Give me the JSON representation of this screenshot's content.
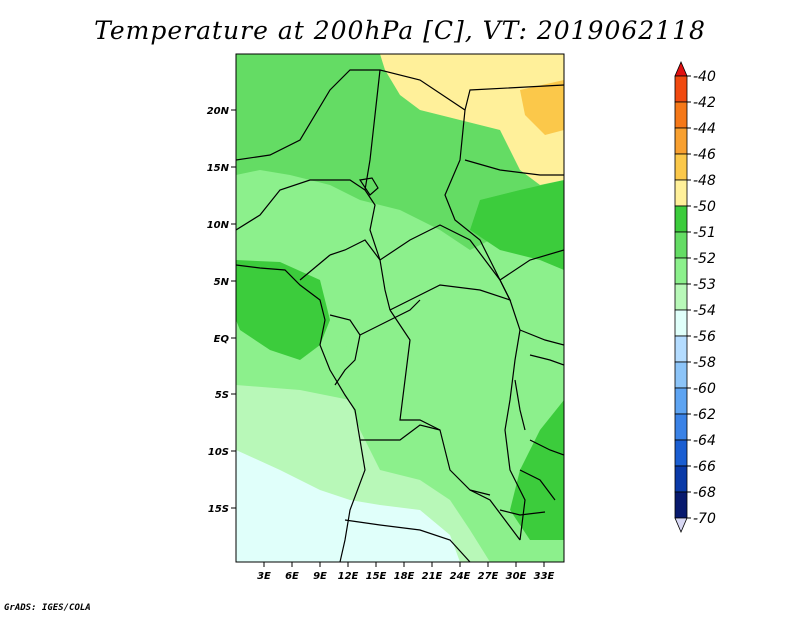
{
  "title": "Temperature at 200hPa [C], VT: 2019062118",
  "credit": "GrADS: IGES/COLA",
  "map": {
    "lat_labels": [
      "20N",
      "15N",
      "10N",
      "5N",
      "EQ",
      "5S",
      "10S",
      "15S"
    ],
    "lon_labels": [
      "3E",
      "6E",
      "9E",
      "12E",
      "15E",
      "18E",
      "21E",
      "24E",
      "27E",
      "30E",
      "33E"
    ],
    "region": "Central Africa"
  },
  "colorbar": {
    "labels": [
      "-40",
      "-42",
      "-44",
      "-46",
      "-48",
      "-50",
      "-51",
      "-52",
      "-53",
      "-54",
      "-56",
      "-58",
      "-60",
      "-62",
      "-64",
      "-66",
      "-68",
      "-70"
    ],
    "colors": [
      "#e01010",
      "#f04a10",
      "#f57818",
      "#f8a030",
      "#fbc84a",
      "#fff09a",
      "#3ccc3c",
      "#64dc64",
      "#8cf08c",
      "#b8f8b8",
      "#e0fffa",
      "#b4dcff",
      "#8cc4f8",
      "#5ea4f2",
      "#3a82e6",
      "#1a5ed2",
      "#0a3aa8",
      "#081a6e",
      "#d8d8f4"
    ]
  }
}
